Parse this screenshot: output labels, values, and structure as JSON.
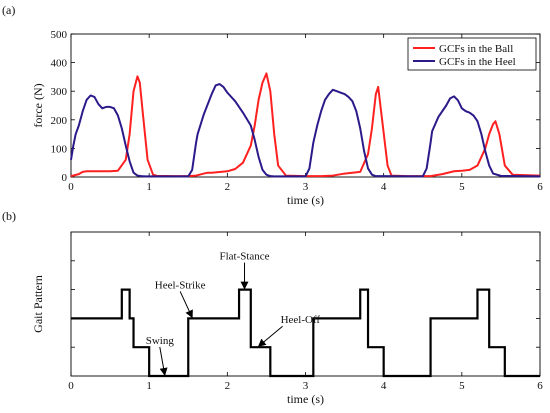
{
  "chart_data": [
    {
      "panel_label": "(a)",
      "type": "line",
      "xlabel": "time (s)",
      "ylabel": "force (N)",
      "xlim": [
        0,
        6
      ],
      "ylim": [
        0,
        500
      ],
      "xticks": [
        0,
        1,
        2,
        3,
        4,
        5,
        6
      ],
      "yticks": [
        0,
        100,
        200,
        300,
        400,
        500
      ],
      "legend_position": "top-right",
      "series": [
        {
          "name": "GCFs in the Ball",
          "color": "#ff2020",
          "x": [
            0,
            0.1,
            0.15,
            0.2,
            0.5,
            0.6,
            0.7,
            0.75,
            0.8,
            0.85,
            0.88,
            0.92,
            0.98,
            1.05,
            1.1,
            1.3,
            1.5,
            1.6,
            1.7,
            1.75,
            1.8,
            2.0,
            2.1,
            2.2,
            2.3,
            2.35,
            2.4,
            2.45,
            2.5,
            2.55,
            2.6,
            2.65,
            2.75,
            3.0,
            3.2,
            3.35,
            3.5,
            3.6,
            3.7,
            3.8,
            3.85,
            3.9,
            3.93,
            3.98,
            4.05,
            4.1,
            4.3,
            4.6,
            4.75,
            4.9,
            5.0,
            5.1,
            5.2,
            5.3,
            5.35,
            5.4,
            5.43,
            5.48,
            5.55,
            5.65,
            6.0
          ],
          "values": [
            3,
            10,
            18,
            20,
            20,
            22,
            60,
            150,
            300,
            352,
            330,
            220,
            60,
            8,
            4,
            3,
            3,
            5,
            12,
            15,
            15,
            20,
            28,
            50,
            110,
            180,
            270,
            330,
            362,
            300,
            150,
            40,
            5,
            3,
            3,
            5,
            12,
            15,
            18,
            80,
            170,
            290,
            315,
            200,
            40,
            5,
            3,
            3,
            10,
            20,
            22,
            25,
            40,
            100,
            150,
            185,
            195,
            150,
            40,
            8,
            5
          ]
        },
        {
          "name": "GCFs in the Heel",
          "color": "#2a1a8a",
          "x": [
            0,
            0.03,
            0.06,
            0.1,
            0.15,
            0.2,
            0.25,
            0.3,
            0.35,
            0.4,
            0.45,
            0.5,
            0.55,
            0.6,
            0.65,
            0.7,
            0.75,
            0.8,
            0.85,
            0.9,
            0.95,
            1.0,
            1.5,
            1.55,
            1.6,
            1.62,
            1.7,
            1.8,
            1.85,
            1.9,
            1.95,
            2.0,
            2.1,
            2.2,
            2.3,
            2.35,
            2.4,
            2.45,
            2.5,
            2.55,
            2.6,
            3.0,
            3.05,
            3.1,
            3.15,
            3.2,
            3.25,
            3.3,
            3.35,
            3.4,
            3.45,
            3.5,
            3.55,
            3.6,
            3.65,
            3.7,
            3.75,
            3.8,
            3.85,
            3.9,
            4.5,
            4.55,
            4.6,
            4.62,
            4.7,
            4.8,
            4.85,
            4.9,
            4.95,
            5.0,
            5.05,
            5.1,
            5.15,
            5.2,
            5.25,
            5.3,
            5.35,
            5.4,
            5.5,
            6.0
          ],
          "values": [
            60,
            110,
            150,
            180,
            230,
            270,
            285,
            280,
            255,
            240,
            245,
            245,
            240,
            215,
            170,
            110,
            55,
            15,
            5,
            3,
            2,
            2,
            2,
            25,
            120,
            150,
            220,
            290,
            320,
            325,
            315,
            295,
            265,
            225,
            180,
            130,
            70,
            25,
            8,
            3,
            2,
            2,
            30,
            120,
            180,
            230,
            270,
            290,
            305,
            300,
            295,
            290,
            280,
            265,
            230,
            170,
            90,
            30,
            8,
            3,
            2,
            30,
            120,
            160,
            210,
            250,
            275,
            282,
            268,
            240,
            230,
            225,
            215,
            195,
            150,
            90,
            40,
            12,
            4,
            2
          ]
        }
      ]
    },
    {
      "panel_label": "(b)",
      "type": "line",
      "xlabel": "time (s)",
      "ylabel": "Gait Pattern",
      "xlim": [
        0,
        6
      ],
      "ylim": [
        0,
        5
      ],
      "xticks": [
        0,
        1,
        2,
        3,
        4,
        5,
        6
      ],
      "series": [
        {
          "color": "#000000",
          "x": [
            0,
            0.65,
            0.65,
            0.75,
            0.75,
            0.8,
            0.8,
            1.0,
            1.0,
            1.5,
            1.5,
            2.15,
            2.15,
            2.3,
            2.3,
            2.55,
            2.55,
            3.1,
            3.1,
            3.7,
            3.7,
            3.8,
            3.8,
            4.0,
            4.0,
            4.6,
            4.6,
            5.2,
            5.2,
            5.35,
            5.35,
            5.55,
            5.55,
            6.0
          ],
          "values": [
            2,
            2,
            3,
            3,
            2,
            2,
            1,
            1,
            0,
            0,
            2,
            2,
            3,
            3,
            1,
            1,
            0,
            0,
            2,
            2,
            3,
            3,
            1,
            1,
            0,
            0,
            2,
            2,
            3,
            3,
            1,
            1,
            0,
            0
          ]
        }
      ],
      "annotations": [
        {
          "text": "Heel-Strike",
          "x": 1.55,
          "y": 2
        },
        {
          "text": "Flat-Stance",
          "x": 2.22,
          "y": 3
        },
        {
          "text": "Heel-Off",
          "x": 2.4,
          "y": 1
        },
        {
          "text": "Swing",
          "x": 1.2,
          "y": 0
        }
      ]
    }
  ]
}
